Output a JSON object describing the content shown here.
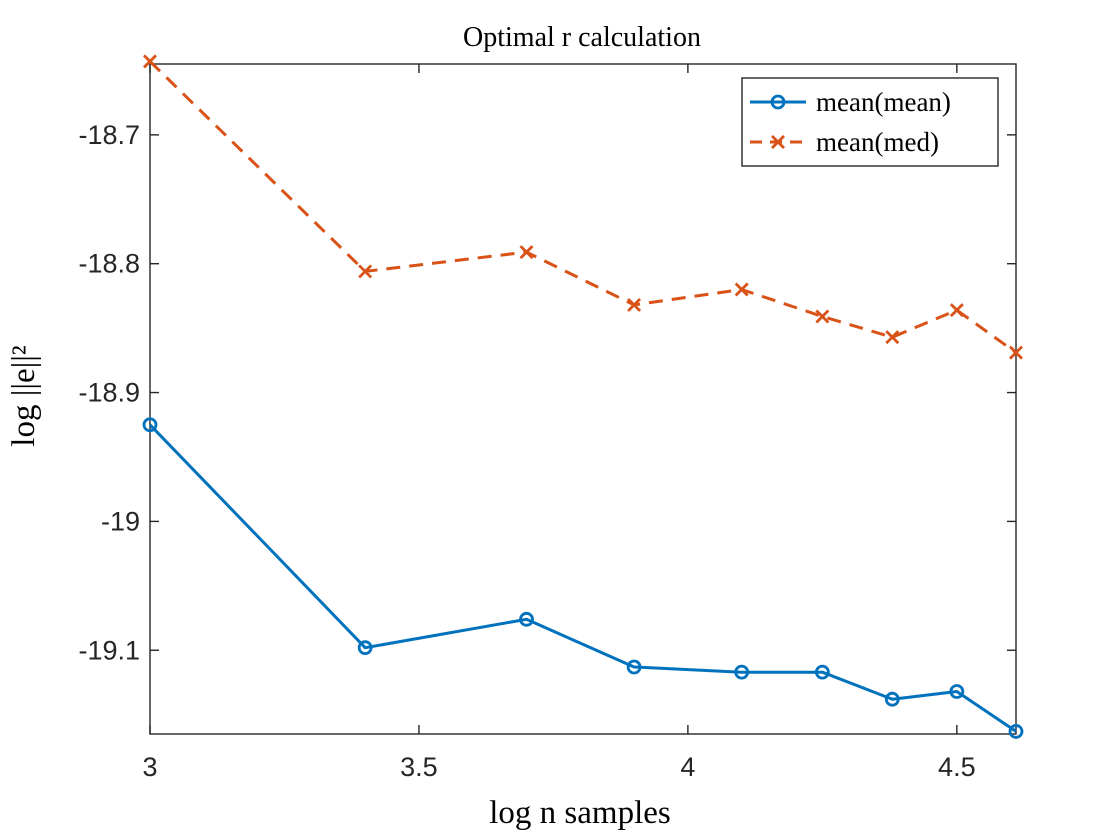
{
  "chart_data": {
    "type": "line",
    "title": "Optimal r calculation",
    "xlabel": "log n samples",
    "ylabel": "log ||e||²",
    "xlim": [
      3,
      4.61
    ],
    "ylim": [
      -19.165,
      -18.645
    ],
    "xticks": [
      3,
      3.5,
      4,
      4.5
    ],
    "xtick_labels": [
      "3",
      "3.5",
      "4",
      "4.5"
    ],
    "yticks": [
      -18.7,
      -18.8,
      -18.9,
      -19,
      -19.1
    ],
    "ytick_labels": [
      "-18.7",
      "-18.8",
      "-18.9",
      "-19",
      "-19.1"
    ],
    "grid": false,
    "legend_position": "top-right",
    "x": [
      3.0,
      3.4,
      3.7,
      3.9,
      4.1,
      4.25,
      4.38,
      4.5,
      4.61
    ],
    "series": [
      {
        "name": "mean(mean)",
        "values": [
          -18.925,
          -19.098,
          -19.076,
          -19.113,
          -19.117,
          -19.117,
          -19.138,
          -19.132,
          -19.163
        ],
        "color": "#0072BD",
        "line_style": "solid",
        "marker": "circle"
      },
      {
        "name": "mean(med)",
        "values": [
          -18.643,
          -18.806,
          -18.791,
          -18.832,
          -18.82,
          -18.841,
          -18.857,
          -18.836,
          -18.869
        ],
        "color": "#D95319",
        "line_style": "dashed",
        "marker": "x"
      }
    ]
  }
}
